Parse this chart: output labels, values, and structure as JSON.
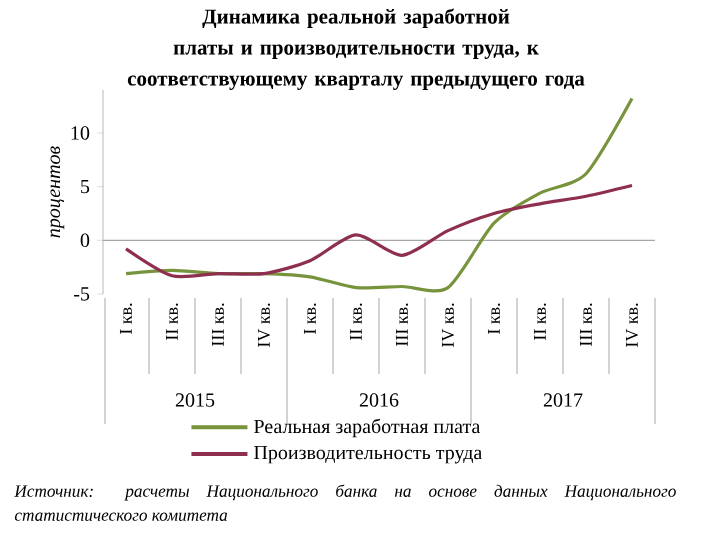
{
  "chart_data": {
    "type": "line",
    "title": "Динамика реальной заработной платы и производительности  труда, к соответствующему кварталу предыдущего года",
    "ylabel": "процентов",
    "categories": [
      "I кв.",
      "II кв.",
      "III кв.",
      "IV кв.",
      "I кв.",
      "II кв.",
      "III кв.",
      "IV кв.",
      "I кв.",
      "II кв.",
      "III кв.",
      "IV кв."
    ],
    "series": [
      {
        "name": "Реальная заработная плата",
        "color": "#77933c",
        "values": [
          -3.1,
          -2.8,
          -3.1,
          -3.1,
          -3.4,
          -4.4,
          -4.3,
          -4.4,
          1.6,
          4.4,
          6.2,
          13.2
        ]
      },
      {
        "name": "Производительность труда",
        "color": "#8e2f4f",
        "values": [
          -0.8,
          -3.3,
          -3.1,
          -3.1,
          -1.9,
          0.5,
          -1.4,
          0.9,
          2.5,
          3.4,
          4.1,
          5.1
        ]
      }
    ],
    "ylim": [
      -5,
      14
    ],
    "yticks": [
      -5,
      0,
      5,
      10
    ],
    "ref_lines": [
      {
        "axis": "y",
        "value": 0,
        "color": "#a6a6a6"
      }
    ],
    "legend": "bottom",
    "annotations": [
      "2015",
      "2016",
      "2017",
      "Источник: расчеты Национального банка на основе данных Национального статистического комитета"
    ]
  }
}
